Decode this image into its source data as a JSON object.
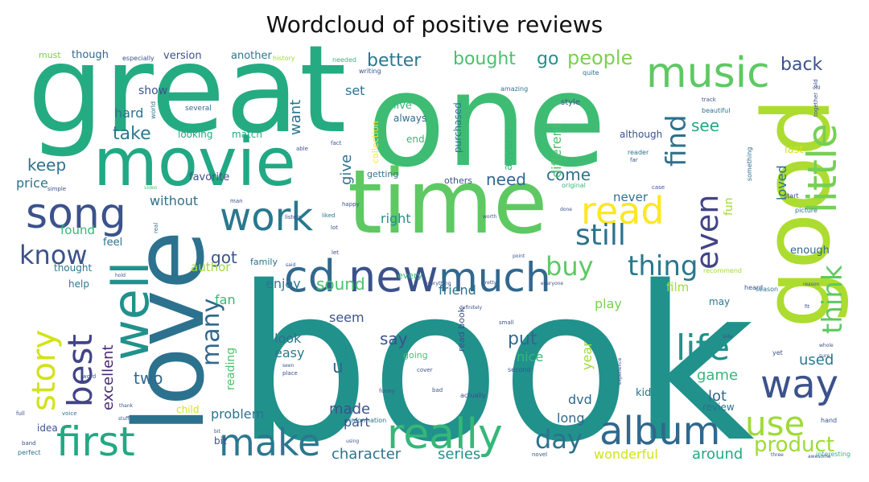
{
  "title": "Wordcloud of positive reviews",
  "palette": [
    "#440154",
    "#46337e",
    "#365c8d",
    "#277f8e",
    "#1fa187",
    "#4ac16d",
    "#a0da39",
    "#fde725"
  ],
  "words": [
    {
      "t": "book",
      "c": "#21918c"
    },
    {
      "t": "one",
      "c": "#3fbc73"
    },
    {
      "t": "great",
      "c": "#25ab82"
    },
    {
      "t": "love",
      "c": "#2c728e"
    },
    {
      "t": "time",
      "c": "#5ec962"
    },
    {
      "t": "good",
      "c": "#addc30"
    },
    {
      "t": "movie",
      "c": "#22a884"
    },
    {
      "t": "music",
      "c": "#5ec962"
    },
    {
      "t": "little",
      "c": "#75d054"
    },
    {
      "t": "well",
      "c": "#21918c"
    },
    {
      "t": "cd",
      "c": "#31688e"
    },
    {
      "t": "new",
      "c": "#3b528b"
    },
    {
      "t": "much",
      "c": "#31688e"
    },
    {
      "t": "read",
      "c": "#fde725"
    },
    {
      "t": "song",
      "c": "#3b528b"
    },
    {
      "t": "work",
      "c": "#2a788e"
    },
    {
      "t": "first",
      "c": "#22a884"
    },
    {
      "t": "really",
      "c": "#35b779"
    },
    {
      "t": "make",
      "c": "#2a788e"
    },
    {
      "t": "album",
      "c": "#31688e"
    },
    {
      "t": "story",
      "c": "#d2e21b"
    },
    {
      "t": "best",
      "c": "#414487"
    },
    {
      "t": "even",
      "c": "#414487"
    },
    {
      "t": "think",
      "c": "#5ec962"
    },
    {
      "t": "life",
      "c": "#21918c"
    },
    {
      "t": "way",
      "c": "#3b528b"
    },
    {
      "t": "use",
      "c": "#a0da39"
    },
    {
      "t": "still",
      "c": "#2c728e"
    },
    {
      "t": "find",
      "c": "#2c728e"
    },
    {
      "t": "buy",
      "c": "#5ec962"
    },
    {
      "t": "thing",
      "c": "#2a788e"
    },
    {
      "t": "day",
      "c": "#2c728e"
    },
    {
      "t": "product",
      "c": "#a0da39"
    },
    {
      "t": "many",
      "c": "#31688e"
    },
    {
      "t": "know",
      "c": "#3b528b"
    },
    {
      "t": "better",
      "c": "#2a788e"
    },
    {
      "t": "bought",
      "c": "#4ac16d"
    },
    {
      "t": "go",
      "c": "#21918c"
    },
    {
      "t": "people",
      "c": "#7ad151"
    },
    {
      "t": "back",
      "c": "#3b528b"
    },
    {
      "t": "take",
      "c": "#2a788e"
    },
    {
      "t": "keep",
      "c": "#2c728e"
    },
    {
      "t": "see",
      "c": "#22a884"
    },
    {
      "t": "come",
      "c": "#2c728e"
    },
    {
      "t": "need",
      "c": "#31688e"
    },
    {
      "t": "give",
      "c": "#2c728e"
    },
    {
      "t": "want",
      "c": "#2c728e"
    },
    {
      "t": "got",
      "c": "#3b528b"
    },
    {
      "t": "sound",
      "c": "#4ac16d"
    },
    {
      "t": "excellent",
      "c": "#482878"
    },
    {
      "t": "two",
      "c": "#31688e"
    },
    {
      "t": "made",
      "c": "#3b528b"
    },
    {
      "t": "say",
      "c": "#3b528b"
    },
    {
      "t": "put",
      "c": "#31688e"
    },
    {
      "t": "used",
      "c": "#2a788e"
    },
    {
      "t": "game",
      "c": "#35b779"
    },
    {
      "t": "lot",
      "c": "#31688e"
    },
    {
      "t": "character",
      "c": "#2c728e"
    },
    {
      "t": "series",
      "c": "#21918c"
    },
    {
      "t": "around",
      "c": "#22a884"
    },
    {
      "t": "wonderful",
      "c": "#d2e21b"
    },
    {
      "t": "long",
      "c": "#31688e"
    },
    {
      "t": "dvd",
      "c": "#31688e"
    },
    {
      "t": "year",
      "c": "#a0da39"
    },
    {
      "t": "nice",
      "c": "#35b779"
    },
    {
      "t": "easy",
      "c": "#2a788e"
    },
    {
      "t": "look",
      "c": "#2c728e"
    },
    {
      "t": "part",
      "c": "#3b528b"
    },
    {
      "t": "problem",
      "c": "#2c728e"
    },
    {
      "t": "fan",
      "c": "#35b779"
    },
    {
      "t": "reading",
      "c": "#4ac16d"
    },
    {
      "t": "author",
      "c": "#a0da39"
    },
    {
      "t": "enjoy",
      "c": "#2a788e"
    },
    {
      "t": "friend",
      "c": "#2c728e"
    },
    {
      "t": "seem",
      "c": "#3b528b"
    },
    {
      "t": "u",
      "c": "#31688e"
    },
    {
      "t": "film",
      "c": "#a0da39"
    },
    {
      "t": "play",
      "c": "#7ad151"
    },
    {
      "t": "right",
      "c": "#21918c"
    },
    {
      "t": "found",
      "c": "#35b779"
    },
    {
      "t": "price",
      "c": "#2c728e"
    },
    {
      "t": "without",
      "c": "#2c728e"
    },
    {
      "t": "hard",
      "c": "#2c728e"
    },
    {
      "t": "show",
      "c": "#3b528b"
    },
    {
      "t": "set",
      "c": "#2c728e"
    },
    {
      "t": "anyone",
      "c": "#35b779"
    },
    {
      "t": "different",
      "c": "#4ac16d"
    },
    {
      "t": "never",
      "c": "#2c728e"
    },
    {
      "t": "loved",
      "c": "#2c728e"
    },
    {
      "t": "fun",
      "c": "#a0da39"
    },
    {
      "t": "enough",
      "c": "#31688e"
    },
    {
      "t": "last",
      "c": "#d2e21b"
    },
    {
      "t": "must",
      "c": "#7ad151"
    },
    {
      "t": "though",
      "c": "#31688e"
    },
    {
      "t": "version",
      "c": "#3b528b"
    },
    {
      "t": "another",
      "c": "#2a788e"
    },
    {
      "t": "live",
      "c": "#35b779"
    },
    {
      "t": "always",
      "c": "#31688e"
    },
    {
      "t": "purchased",
      "c": "#2c728e"
    },
    {
      "t": "favorite",
      "c": "#3b528b"
    },
    {
      "t": "feel",
      "c": "#2c728e"
    },
    {
      "t": "help",
      "c": "#2a788e"
    },
    {
      "t": "thought",
      "c": "#2a788e"
    },
    {
      "t": "kid",
      "c": "#2c728e"
    },
    {
      "t": "review",
      "c": "#2c728e"
    },
    {
      "t": "idea",
      "c": "#3b528b"
    },
    {
      "t": "bit",
      "c": "#3b528b"
    },
    {
      "t": "child",
      "c": "#d2e21b"
    },
    {
      "t": "end",
      "c": "#35b779"
    },
    {
      "t": "looking",
      "c": "#22a884"
    },
    {
      "t": "match",
      "c": "#22a884"
    },
    {
      "t": "although",
      "c": "#3b528b"
    },
    {
      "t": "may",
      "c": "#2a788e"
    },
    {
      "t": "read book",
      "c": "#3b528b"
    },
    {
      "t": "getting",
      "c": "#2a788e"
    },
    {
      "t": "others",
      "c": "#3b528b"
    },
    {
      "t": "collection",
      "c": "#fde725"
    },
    {
      "t": "family",
      "c": "#2c728e"
    },
    {
      "t": "every",
      "c": "#35b779"
    },
    {
      "t": "especially",
      "c": "#3b528b"
    },
    {
      "t": "history",
      "c": "#a0da39"
    },
    {
      "t": "several",
      "c": "#31688e"
    },
    {
      "t": "world",
      "c": "#2c728e"
    },
    {
      "t": "beautiful",
      "c": "#2c728e"
    },
    {
      "t": "something",
      "c": "#2c728e"
    },
    {
      "t": "reader",
      "c": "#2c728e"
    },
    {
      "t": "quality",
      "c": "#21918c"
    },
    {
      "t": "going",
      "c": "#4ac16d"
    },
    {
      "t": "recommend",
      "c": "#a0da39"
    },
    {
      "t": "second",
      "c": "#3b528b"
    },
    {
      "t": "original",
      "c": "#35b779"
    },
    {
      "t": "style",
      "c": "#3b528b"
    },
    {
      "t": "amazing",
      "c": "#2c728e"
    },
    {
      "t": "writing",
      "c": "#3b528b"
    },
    {
      "t": "needed",
      "c": "#35b779"
    },
    {
      "t": "quite",
      "c": "#2c728e"
    },
    {
      "t": "heard",
      "c": "#3b528b"
    },
    {
      "t": "picture",
      "c": "#2c728e"
    },
    {
      "t": "start",
      "c": "#3b528b"
    },
    {
      "t": "season",
      "c": "#2c728e"
    },
    {
      "t": "together",
      "c": "#3b528b"
    },
    {
      "t": "interesting",
      "c": "#35b779"
    },
    {
      "t": "information",
      "c": "#2c728e"
    },
    {
      "t": "actually",
      "c": "#3b528b"
    },
    {
      "t": "perfect",
      "c": "#2c728e"
    },
    {
      "t": "hand",
      "c": "#3b528b"
    },
    {
      "t": "full",
      "c": "#3b528b"
    },
    {
      "t": "voice",
      "c": "#2c728e"
    },
    {
      "t": "simple",
      "c": "#3b528b"
    },
    {
      "t": "video",
      "c": "#4ac16d"
    },
    {
      "t": "happy",
      "c": "#3b528b"
    },
    {
      "t": "listen",
      "c": "#3b528b"
    },
    {
      "t": "liked",
      "c": "#2c728e"
    },
    {
      "t": "lot",
      "c": "#3b528b"
    },
    {
      "t": "real",
      "c": "#2c728e"
    },
    {
      "t": "small",
      "c": "#3b528b"
    },
    {
      "t": "old",
      "c": "#3b528b"
    },
    {
      "t": "able",
      "c": "#3b528b"
    },
    {
      "t": "fact",
      "c": "#3b528b"
    },
    {
      "t": "bad",
      "c": "#3b528b"
    },
    {
      "t": "funny",
      "c": "#3b528b"
    },
    {
      "t": "cover",
      "c": "#3b528b"
    },
    {
      "t": "place",
      "c": "#3b528b"
    },
    {
      "t": "word",
      "c": "#3b528b"
    },
    {
      "t": "band",
      "c": "#3b528b"
    },
    {
      "t": "man",
      "c": "#3b528b"
    },
    {
      "t": "far",
      "c": "#3b528b"
    },
    {
      "t": "track",
      "c": "#3b528b"
    },
    {
      "t": "case",
      "c": "#3b528b"
    },
    {
      "t": "three",
      "c": "#3b528b"
    },
    {
      "t": "novel",
      "c": "#3b528b"
    },
    {
      "t": "done",
      "c": "#3b528b"
    },
    {
      "t": "pretty",
      "c": "#3b528b"
    },
    {
      "t": "everything",
      "c": "#3b528b"
    },
    {
      "t": "definitely",
      "c": "#3b528b"
    },
    {
      "t": "hold",
      "c": "#3b528b"
    },
    {
      "t": "said",
      "c": "#3b528b"
    },
    {
      "t": "yet",
      "c": "#3b528b"
    },
    {
      "t": "whole",
      "c": "#3b528b"
    },
    {
      "t": "side",
      "c": "#3b528b"
    },
    {
      "t": "experience",
      "c": "#3b528b"
    },
    {
      "t": "stuff",
      "c": "#3b528b"
    },
    {
      "t": "thank",
      "c": "#3b528b"
    },
    {
      "t": "everyone",
      "c": "#3b528b"
    },
    {
      "t": "using",
      "c": "#3b528b"
    },
    {
      "t": "awesome",
      "c": "#3b528b"
    },
    {
      "t": "reason",
      "c": "#3b528b"
    },
    {
      "t": "point",
      "c": "#3b528b"
    },
    {
      "t": "seen",
      "c": "#3b528b"
    },
    {
      "t": "let",
      "c": "#3b528b"
    },
    {
      "t": "worth",
      "c": "#3b528b"
    },
    {
      "t": "sure",
      "c": "#3b528b"
    },
    {
      "t": "old",
      "c": "#3b528b"
    },
    {
      "t": "fit",
      "c": "#3b528b"
    },
    {
      "t": "bit",
      "c": "#3b528b"
    }
  ]
}
